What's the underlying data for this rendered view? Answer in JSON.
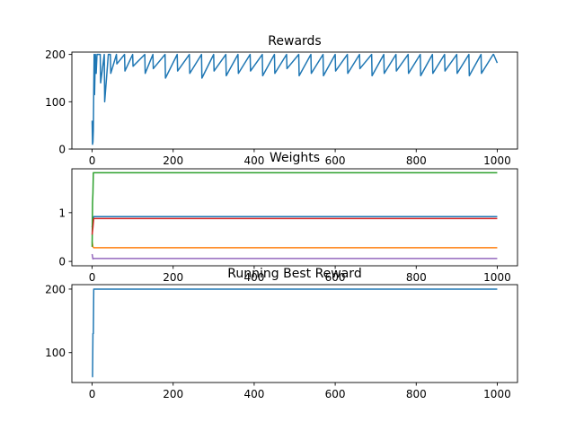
{
  "chart_data": [
    {
      "type": "line",
      "title": "Rewards",
      "xlabel": "",
      "ylabel": "",
      "xlim": [
        -50,
        1050
      ],
      "ylim": [
        0,
        205
      ],
      "xticks": [
        0,
        200,
        400,
        600,
        800,
        1000
      ],
      "yticks": [
        0,
        100,
        200
      ],
      "grid": false,
      "series": [
        {
          "color": "#1f77b4",
          "x": [
            0,
            1,
            2,
            3,
            4,
            5,
            6,
            8,
            10,
            12,
            15,
            20,
            21,
            30,
            31,
            40,
            45,
            46,
            60,
            61,
            80,
            81,
            100,
            101,
            130,
            131,
            150,
            151,
            180,
            181,
            210,
            211,
            240,
            241,
            270,
            271,
            300,
            301,
            330,
            331,
            360,
            361,
            390,
            391,
            420,
            421,
            450,
            451,
            480,
            481,
            510,
            511,
            540,
            541,
            570,
            571,
            600,
            601,
            630,
            631,
            660,
            661,
            690,
            691,
            720,
            721,
            750,
            751,
            780,
            781,
            810,
            811,
            840,
            841,
            870,
            871,
            900,
            901,
            930,
            931,
            960,
            961,
            990,
            991,
            1000
          ],
          "y": [
            60,
            10,
            15,
            40,
            125,
            200,
            115,
            200,
            160,
            200,
            200,
            200,
            140,
            200,
            100,
            200,
            200,
            160,
            200,
            180,
            200,
            165,
            200,
            175,
            200,
            160,
            200,
            170,
            200,
            150,
            200,
            165,
            200,
            160,
            200,
            150,
            200,
            165,
            200,
            155,
            200,
            160,
            200,
            165,
            200,
            155,
            200,
            160,
            200,
            170,
            200,
            155,
            200,
            160,
            200,
            155,
            200,
            165,
            200,
            160,
            200,
            170,
            200,
            155,
            200,
            160,
            200,
            165,
            200,
            160,
            200,
            155,
            200,
            160,
            200,
            165,
            200,
            160,
            200,
            155,
            200,
            160,
            200,
            200,
            182
          ]
        }
      ]
    },
    {
      "type": "line",
      "title": "Weights",
      "xlabel": "",
      "ylabel": "",
      "xlim": [
        -50,
        1050
      ],
      "ylim": [
        -0.09,
        1.9
      ],
      "xticks": [
        0,
        200,
        400,
        600,
        800,
        1000
      ],
      "yticks": [
        0,
        1
      ],
      "grid": false,
      "series": [
        {
          "color": "#1f77b4",
          "x": [
            0,
            2,
            4,
            1000
          ],
          "y": [
            0.7,
            0.85,
            0.92,
            0.92
          ]
        },
        {
          "color": "#ff7f0e",
          "x": [
            0,
            2,
            4,
            1000
          ],
          "y": [
            0.4,
            0.3,
            0.28,
            0.28
          ]
        },
        {
          "color": "#2ca02c",
          "x": [
            0,
            1,
            2,
            3,
            4,
            1000
          ],
          "y": [
            0.3,
            1.2,
            1.4,
            1.82,
            1.82,
            1.82
          ]
        },
        {
          "color": "#d62728",
          "x": [
            0,
            2,
            4,
            1000
          ],
          "y": [
            0.55,
            0.7,
            0.88,
            0.88
          ]
        },
        {
          "color": "#9467bd",
          "x": [
            0,
            2,
            4,
            1000
          ],
          "y": [
            0.15,
            0.05,
            0.06,
            0.06
          ]
        }
      ]
    },
    {
      "type": "line",
      "title": "Running Best Reward",
      "xlabel": "",
      "ylabel": "",
      "xlim": [
        -50,
        1050
      ],
      "ylim": [
        53,
        207
      ],
      "xticks": [
        0,
        200,
        400,
        600,
        800,
        1000
      ],
      "yticks": [
        100,
        200
      ],
      "grid": false,
      "series": [
        {
          "color": "#1f77b4",
          "x": [
            0,
            1,
            2,
            3,
            4,
            5,
            1000
          ],
          "y": [
            62,
            62,
            130,
            130,
            200,
            200,
            200
          ]
        }
      ]
    }
  ]
}
